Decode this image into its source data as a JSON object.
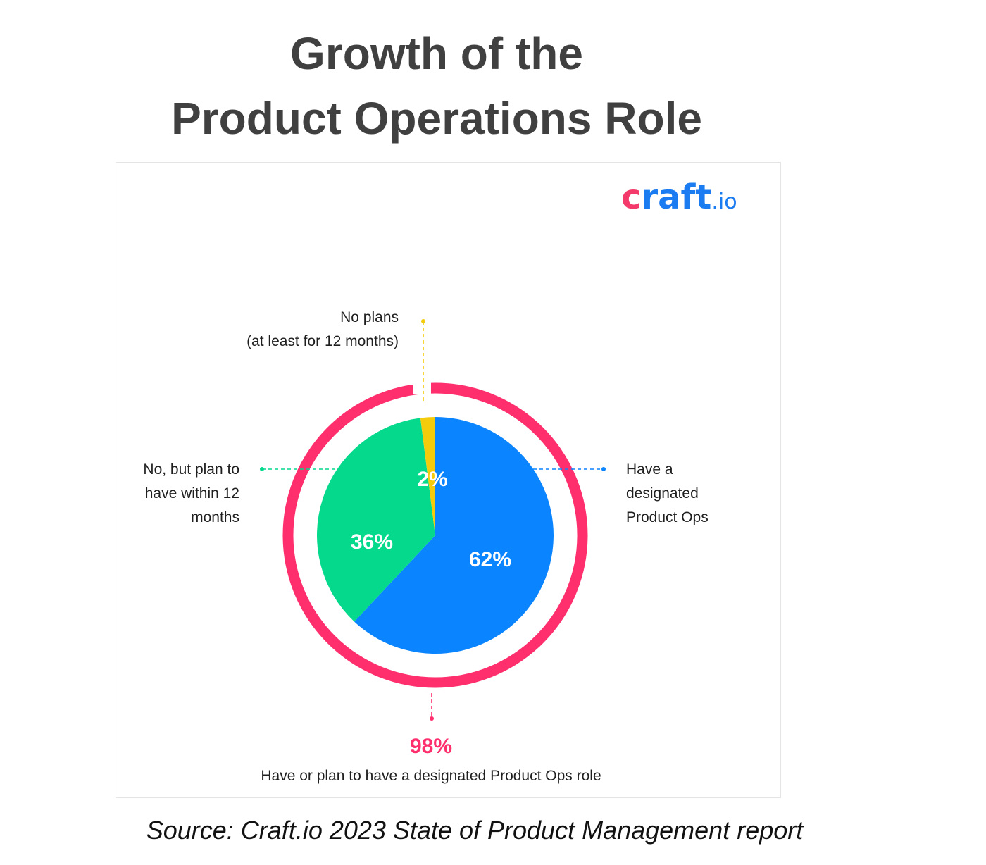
{
  "title_line1": "Growth of the",
  "title_line2": "Product Operations Role",
  "logo": {
    "main": "craft",
    "suffix": ".io"
  },
  "source": "Source: Craft.io 2023 State of Product Management report",
  "colors": {
    "blue": "#0a84ff",
    "green": "#05d98c",
    "yellow": "#f5cc0c",
    "pink": "#ff2e6d"
  },
  "chart_data": {
    "type": "pie",
    "slices": [
      {
        "label": "Have a designated Product Ops",
        "label_lines": [
          "Have a",
          "designated",
          "Product Ops"
        ],
        "value": 62,
        "display": "62%",
        "color": "#0a84ff"
      },
      {
        "label": "No, but plan to have within 12 months",
        "label_lines": [
          "No, but plan to",
          "have within 12",
          "months"
        ],
        "value": 36,
        "display": "36%",
        "color": "#05d98c"
      },
      {
        "label": "No plans (at least for 12 months)",
        "label_lines": [
          "No plans",
          "(at least for 12 months)"
        ],
        "value": 2,
        "display": "2%",
        "color": "#f5cc0c"
      }
    ],
    "total": {
      "value": 98,
      "display": "98%",
      "label": "Have or plan to have a designated Product Ops role",
      "color": "#ff2e6d"
    }
  }
}
